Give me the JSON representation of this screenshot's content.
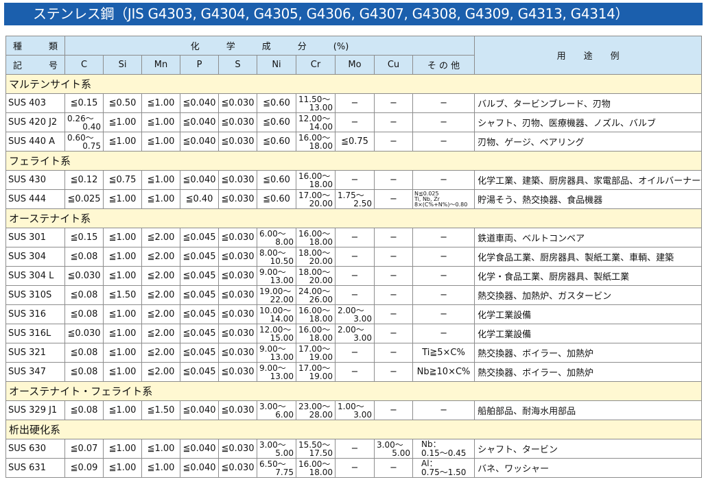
{
  "title": "ステンレス鋼（JIS G4303, G4304, G4305, G4306, G4307, G4308, G4309, G4313, G4314）",
  "header": {
    "kind_top": "種　　　類",
    "kind_bottom": "記　　　号",
    "chem": "化　　　学　　　成　　　分　　　(%)",
    "use": "用　　途　　例",
    "elements": [
      "C",
      "Si",
      "Mn",
      "P",
      "S",
      "Ni",
      "Cr",
      "Mo",
      "Cu",
      "そ の 他"
    ]
  },
  "sections": [
    {
      "name": "マルテンサイト系",
      "rows": [
        [
          "SUS 403",
          "≦0.15",
          "≦0.50",
          "≦1.00",
          "≦0.040",
          "≦0.030",
          "≦0.60",
          "11.50〜|13.00",
          "−",
          "−",
          "−",
          "バルブ、タービンブレード、刃物"
        ],
        [
          "SUS 420 J2",
          "0.26〜|0.40",
          "≦1.00",
          "≦1.00",
          "≦0.040",
          "≦0.030",
          "≦0.60",
          "12.00〜|14.00",
          "−",
          "−",
          "−",
          "シャフト、刃物、医療機器、ノズル、バルブ"
        ],
        [
          "SUS 440 A",
          "0.60〜|0.75",
          "≦1.00",
          "≦1.00",
          "≦0.040",
          "≦0.030",
          "≦0.60",
          "16.00〜|18.00",
          "≦0.75",
          "−",
          "−",
          "刃物、ゲージ、ベアリング"
        ]
      ]
    },
    {
      "name": "フェライト系",
      "rows": [
        [
          "SUS 430",
          "≦0.12",
          "≦0.75",
          "≦1.00",
          "≦0.040",
          "≦0.030",
          "≦0.60",
          "16.00〜|18.00",
          "−",
          "−",
          "−",
          "化学工業、建築、厨房器具、家電部品、オイルバーナー部品"
        ],
        [
          "SUS 444",
          "≦0.025",
          "≦1.00",
          "≦1.00",
          "≦0.40",
          "≦0.030",
          "≦0.60",
          "17.00〜|20.00",
          "1.75〜|2.50",
          "−",
          "N≦0.025^Ti, Nb, Zr^8×(C%+N%)〜0.80",
          "貯湯そう、熱交換器、食品機器"
        ]
      ]
    },
    {
      "name": "オーステナイト系",
      "rows": [
        [
          "SUS 301",
          "≦0.15",
          "≦1.00",
          "≦2.00",
          "≦0.045",
          "≦0.030",
          "6.00〜|8.00",
          "16.00〜|18.00",
          "−",
          "−",
          "−",
          "鉄道車両、ベルトコンベア"
        ],
        [
          "SUS 304",
          "≦0.08",
          "≦1.00",
          "≦2.00",
          "≦0.045",
          "≦0.030",
          "8.00〜|10.50",
          "18.00〜|20.00",
          "−",
          "−",
          "−",
          "化学食品工業、厨房器具、製紙工業、車輌、建築"
        ],
        [
          "SUS 304 L",
          "≦0.030",
          "≦1.00",
          "≦2.00",
          "≦0.045",
          "≦0.030",
          "9.00〜|13.00",
          "18.00〜|20.00",
          "−",
          "−",
          "−",
          "化学・食品工業、厨房器具、製紙工業"
        ],
        [
          "SUS 310S",
          "≦0.08",
          "≦1.50",
          "≦2.00",
          "≦0.045",
          "≦0.030",
          "19.00〜|22.00",
          "24.00〜|26.00",
          "−",
          "−",
          "−",
          "熱交換器、加熱炉、ガスタービン"
        ],
        [
          "SUS 316",
          "≦0.08",
          "≦1.00",
          "≦2.00",
          "≦0.045",
          "≦0.030",
          "10.00〜|14.00",
          "16.00〜|18.00",
          "2.00〜|3.00",
          "−",
          "−",
          "化学工業設備"
        ],
        [
          "SUS 316L",
          "≦0.030",
          "≦1.00",
          "≦2.00",
          "≦0.045",
          "≦0.030",
          "12.00〜|15.00",
          "16.00〜|18.00",
          "2.00〜|3.00",
          "−",
          "−",
          "化学工業設備"
        ],
        [
          "SUS 321",
          "≦0.08",
          "≦1.00",
          "≦2.00",
          "≦0.045",
          "≦0.030",
          "9.00〜|13.00",
          "17.00〜|19.00",
          "−",
          "−",
          "Ti≧5×C%",
          "熱交換器、ボイラー、加熱炉"
        ],
        [
          "SUS 347",
          "≦0.08",
          "≦1.00",
          "≦2.00",
          "≦0.045",
          "≦0.030",
          "9.00〜|13.00",
          "17.00〜|19.00",
          "−",
          "−",
          "Nb≧10×C%",
          "熱交換器、ボイラー、加熱炉"
        ]
      ]
    },
    {
      "name": "オーステナイト・フェライト系",
      "rows": [
        [
          "SUS 329 J1",
          "≦0.08",
          "≦1.00",
          "≦1.50",
          "≦0.040",
          "≦0.030",
          "3.00〜|6.00",
          "23.00〜|28.00",
          "1.00〜|3.00",
          "−",
          "−",
          "船舶部品、耐海水用部品"
        ]
      ]
    },
    {
      "name": "析出硬化系",
      "rows": [
        [
          "SUS 630",
          "≦0.07",
          "≦1.00",
          "≦1.00",
          "≦0.040",
          "≦0.030",
          "3.00〜|5.00",
          "15.50〜|17.50",
          "−",
          "3.00〜|5.00",
          "Nb：~0.15〜0.45",
          "シャフト、タービン"
        ],
        [
          "SUS 631",
          "≦0.09",
          "≦1.00",
          "≦1.00",
          "≦0.040",
          "≦0.030",
          "6.50〜|7.75",
          "16.00〜|18.00",
          "−",
          "−",
          "Al：~0.75〜1.50",
          "バネ、ワッシャー"
        ]
      ]
    }
  ]
}
